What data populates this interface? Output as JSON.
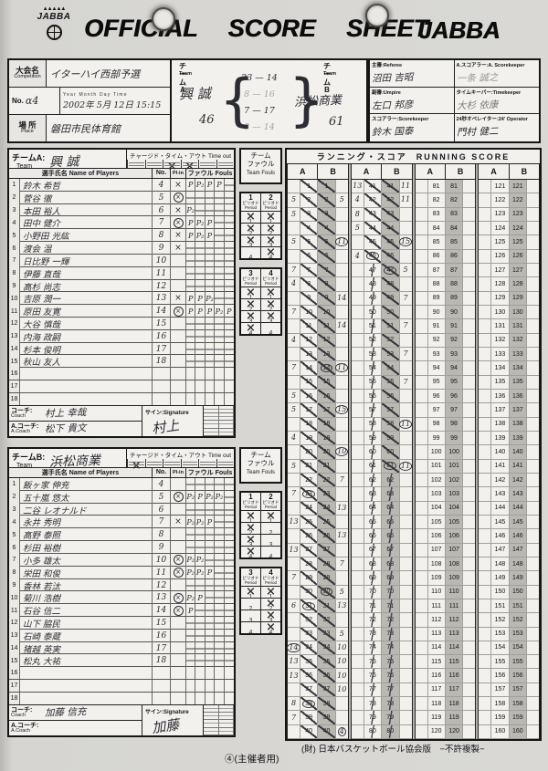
{
  "header": {
    "logo_text": "JABBA",
    "logo_crown": "▲▲▲▲▲",
    "title": "OFFICIAL SCORE SHEET",
    "brand": "JABBA"
  },
  "info": {
    "competition_label": "大会名",
    "competition_label_en": "Competition",
    "competition": "イターハイ西部予選",
    "no_label": "No.",
    "no_value": "α4",
    "date_head": "Year  Month  Day  Time",
    "date_value": "2002年 5月 12日 15:15",
    "place_label": "場 所",
    "place_label_en": "Place",
    "place": "磐田市民体育館"
  },
  "teams_header": {
    "team_a_label": "チームA",
    "team_b_label": "チームB",
    "team_en": "Team",
    "team_a_name": "興 誠",
    "team_a_total": "46",
    "team_b_name": "浜松商業",
    "team_b_total": "61",
    "quarters": [
      {
        "a": "23",
        "b": "14"
      },
      {
        "a": "8",
        "b": "16"
      },
      {
        "a": "7",
        "b": "17"
      },
      {
        "a": "8",
        "b": "14"
      }
    ]
  },
  "officials": [
    {
      "label": "主審:Referee",
      "value": "沼田 吉昭"
    },
    {
      "label": "A.スコアラー:A. Scorekeeper",
      "value": "一条 誠之"
    },
    {
      "label": "副審:Umpire",
      "value": "左口 邦彦"
    },
    {
      "label": "タイムキーパー:Timekeeper",
      "value": "大杉 依康"
    },
    {
      "label": "スコアラー:Scorekeeper",
      "value": "鈴木 国泰"
    },
    {
      "label": "24秒オペレイター:24' Operator",
      "value": "門村 健二"
    }
  ],
  "team_a": {
    "panel_label": "チームA:",
    "team_en": "Team",
    "name": "興 誠",
    "timeout_label": "チャージド・タイム・アウト Time out",
    "timeouts": [
      false,
      false,
      true,
      true,
      false,
      false
    ],
    "columns": {
      "players": "選手氏名 Name of Players",
      "no": "No.",
      "plin": "Pl-in",
      "fouls": "ファウル Fouls"
    },
    "players": [
      {
        "name": "鈴木 希哲",
        "no": "4",
        "plin": "x",
        "fouls": [
          "P",
          "P₂",
          "P",
          "P"
        ]
      },
      {
        "name": "菅谷 徹",
        "no": "5",
        "plin": "ox",
        "fouls": []
      },
      {
        "name": "本田 裕人",
        "no": "6",
        "plin": "x",
        "fouls": [
          "P₂"
        ]
      },
      {
        "name": "田中 健介",
        "no": "7",
        "plin": "ox",
        "fouls": [
          "P",
          "P₂",
          "P"
        ]
      },
      {
        "name": "小野田 光紘",
        "no": "8",
        "plin": "x",
        "fouls": [
          "P",
          "P₂",
          "P"
        ]
      },
      {
        "name": "渡会 温",
        "no": "9",
        "plin": "x",
        "fouls": []
      },
      {
        "name": "日比野 一輝",
        "no": "10",
        "plin": "",
        "fouls": []
      },
      {
        "name": "伊藤 直哉",
        "no": "11",
        "plin": "",
        "fouls": []
      },
      {
        "name": "高杉 尚志",
        "no": "12",
        "plin": "",
        "fouls": []
      },
      {
        "name": "吉原 潤一",
        "no": "13",
        "plin": "x",
        "fouls": [
          "P",
          "P",
          "P₂"
        ]
      },
      {
        "name": "原田 友寛",
        "no": "14",
        "plin": "ox",
        "fouls": [
          "P",
          "P",
          "P",
          "P₂",
          "P"
        ]
      },
      {
        "name": "大谷 慎哉",
        "no": "15",
        "plin": "",
        "fouls": []
      },
      {
        "name": "内海 政嗣",
        "no": "16",
        "plin": "",
        "fouls": []
      },
      {
        "name": "杉本 俊明",
        "no": "17",
        "plin": "",
        "fouls": []
      },
      {
        "name": "秋山 友人",
        "no": "18",
        "plin": "",
        "fouls": []
      },
      {
        "name": "",
        "no": "",
        "plin": "",
        "fouls": []
      },
      {
        "name": "",
        "no": "",
        "plin": "",
        "fouls": []
      },
      {
        "name": "",
        "no": "",
        "plin": "",
        "fouls": []
      }
    ],
    "coach_label": "コーチ:",
    "coach_en": "Coach",
    "coach": "村上 幸哉",
    "acoach_label": "A.コーチ:",
    "acoach_en": "A.Coach",
    "acoach": "松下 貴文",
    "sign_label": "サイン:Signature",
    "signature": "村上"
  },
  "team_b": {
    "panel_label": "チームB:",
    "team_en": "Team",
    "name": "浜松商業",
    "timeout_label": "チャージド・タイム・アウト Time out",
    "timeouts": [
      true,
      false,
      false,
      false,
      false,
      false
    ],
    "columns": {
      "players": "選手氏名 Name of Players",
      "no": "No.",
      "plin": "Pl-in",
      "fouls": "ファウル Fouls"
    },
    "players": [
      {
        "name": "飯ヶ家 伸充",
        "no": "4",
        "plin": "",
        "fouls": []
      },
      {
        "name": "五十嵐 悠太",
        "no": "5",
        "plin": "ox",
        "fouls": [
          "P₂",
          "P",
          "P₂",
          "P₂"
        ]
      },
      {
        "name": "二谷 レオナルド",
        "no": "6",
        "plin": "",
        "fouls": []
      },
      {
        "name": "永井 秀明",
        "no": "7",
        "plin": "x",
        "fouls": [
          "P₂",
          "P₂",
          "P"
        ]
      },
      {
        "name": "高野 泰照",
        "no": "8",
        "plin": "",
        "fouls": []
      },
      {
        "name": "杉田 裕樹",
        "no": "9",
        "plin": "",
        "fouls": []
      },
      {
        "name": "小多 雄太",
        "no": "10",
        "plin": "ox",
        "fouls": [
          "P₂",
          "P₂"
        ]
      },
      {
        "name": "栄田 和俊",
        "no": "11",
        "plin": "ox",
        "fouls": [
          "P₂",
          "P₂",
          "P"
        ]
      },
      {
        "name": "香林 若汰",
        "no": "12",
        "plin": "",
        "fouls": []
      },
      {
        "name": "菊川 浩樹",
        "no": "13",
        "plin": "ox",
        "fouls": [
          "P₂",
          "P"
        ]
      },
      {
        "name": "石谷 信二",
        "no": "14",
        "plin": "ox",
        "fouls": [
          "P"
        ]
      },
      {
        "name": "山下 脇民",
        "no": "15",
        "plin": "",
        "fouls": []
      },
      {
        "name": "石崎 泰蔵",
        "no": "16",
        "plin": "",
        "fouls": []
      },
      {
        "name": "猪越 英実",
        "no": "17",
        "plin": "",
        "fouls": []
      },
      {
        "name": "松丸 大祐",
        "no": "18",
        "plin": "",
        "fouls": []
      },
      {
        "name": "",
        "no": "",
        "plin": "",
        "fouls": []
      },
      {
        "name": "",
        "no": "",
        "plin": "",
        "fouls": []
      },
      {
        "name": "",
        "no": "",
        "plin": "",
        "fouls": []
      }
    ],
    "coach_label": "コーチ:",
    "coach_en": "Coach",
    "coach": "加藤 信充",
    "acoach_label": "A.コーチ:",
    "acoach_en": "A.Coach",
    "acoach": "",
    "sign_label": "サイン:Signature",
    "signature": "加藤"
  },
  "team_fouls": {
    "label_jp1": "チーム",
    "label_jp2": "ファウル",
    "label_en": "Team Fouls",
    "period_jp": "ピリオド",
    "period_en": "Period",
    "a": {
      "box1": {
        "periods": [
          "1",
          "2"
        ],
        "crossed": [
          [
            true,
            true
          ],
          [
            true,
            true
          ],
          [
            true,
            true
          ],
          [
            false,
            true
          ]
        ]
      },
      "box2": {
        "periods": [
          "3",
          "4"
        ],
        "crossed": [
          [
            true,
            true
          ],
          [
            true,
            true
          ],
          [
            true,
            true
          ],
          [
            true,
            false
          ]
        ]
      }
    },
    "b": {
      "box1": {
        "periods": [
          "1",
          "2"
        ],
        "crossed": [
          [
            true,
            true
          ],
          [
            true,
            false
          ],
          [
            true,
            false
          ],
          [
            true,
            false
          ]
        ]
      },
      "box2": {
        "periods": [
          "3",
          "4"
        ],
        "crossed": [
          [
            true,
            true
          ],
          [
            false,
            true
          ],
          [
            false,
            true
          ],
          [
            false,
            true
          ]
        ]
      }
    }
  },
  "running": {
    "title_jp": "ランニング・スコア",
    "title_en": "RUNNING SCORE",
    "col_a": "A",
    "col_b": "B",
    "group_starts": [
      1,
      41,
      81,
      121
    ],
    "rows_per_group": 40,
    "a_scored_through": 46,
    "b_scored_through": 61,
    "a_circles": [
      23,
      31,
      38,
      46
    ],
    "b_circles": [
      14,
      30,
      47,
      61
    ],
    "a_unused_strike": [
      47,
      80
    ],
    "b_unused_strike": [
      62,
      80
    ],
    "a_player_notes": {
      "2": "5",
      "3": "5",
      "5": "5",
      "7": "7",
      "8": "4",
      "10": "7",
      "12": "4",
      "14": "7",
      "16": "5",
      "17": "5",
      "19": "4",
      "21": "5",
      "23": "7",
      "25": "13",
      "27": "13",
      "29": "7",
      "31": "6",
      "34": "(14)",
      "35": "13",
      "36": "13",
      "38": "8",
      "39": "7",
      "41": "13",
      "42": "4",
      "43": "8",
      "44": "5",
      "46": "4"
    },
    "b_player_notes": {
      "2": "5",
      "5": "(11)",
      "9": "14",
      "11": "14",
      "14": "(11)",
      "17": "(15)",
      "20": "(10)",
      "22": "7",
      "24": "13",
      "26": "13",
      "28": "7",
      "30": "5",
      "31": "13",
      "33": "5",
      "34": "10",
      "35": "10",
      "36": "10",
      "37": "10",
      "40": "(4)",
      "41": "11",
      "42": "11",
      "45": "(15)",
      "47": "5",
      "49": "7",
      "51": "7",
      "53": "7",
      "55": "7",
      "58": "(11)",
      "61": "(11)"
    }
  },
  "footer": {
    "copy_number": "④(主催者用)",
    "publisher": "(財) 日本バスケットボール協会版　−不許複製−"
  }
}
